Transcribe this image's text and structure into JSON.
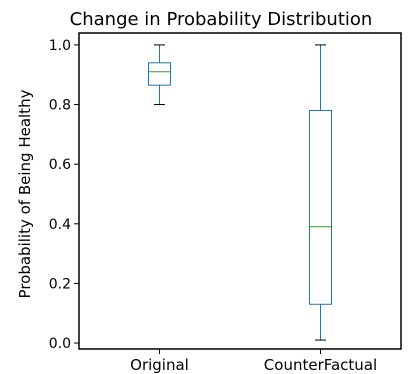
{
  "chart_data": {
    "type": "box",
    "title": "Change in Probability Distribution",
    "xlabel": "",
    "ylabel": "Probability of Being Healthy",
    "ylim": [
      -0.02,
      1.04
    ],
    "yticks": [
      0.0,
      0.2,
      0.4,
      0.6,
      0.8,
      1.0
    ],
    "ytick_labels": [
      "0.0",
      "0.2",
      "0.4",
      "0.6",
      "0.8",
      "1.0"
    ],
    "grid": false,
    "categories": [
      "Original",
      "CounterFactual"
    ],
    "boxes": [
      {
        "category": "Original",
        "whisker_low": 0.8,
        "q1": 0.865,
        "median": 0.91,
        "q3": 0.94,
        "whisker_high": 1.0
      },
      {
        "category": "CounterFactual",
        "whisker_low": 0.01,
        "q1": 0.13,
        "median": 0.39,
        "q3": 0.78,
        "whisker_high": 1.0
      }
    ],
    "colors": {
      "box": "#1f77b4",
      "median": "#2ca02c",
      "whisker": "#000000",
      "axes": "#000000"
    }
  }
}
